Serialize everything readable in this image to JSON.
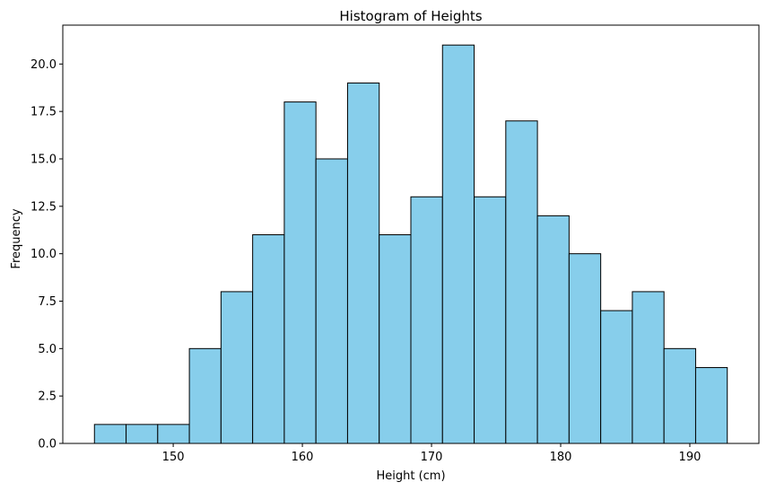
{
  "chart_data": {
    "type": "bar",
    "title": "Histogram of Heights",
    "xlabel": "Height (cm)",
    "ylabel": "Frequency",
    "bin_edges": [
      143.9,
      146.35,
      148.8,
      151.25,
      153.7,
      156.15,
      158.6,
      161.05,
      163.5,
      165.95,
      168.4,
      170.85,
      173.3,
      175.75,
      178.2,
      180.65,
      183.1,
      185.55,
      188.0,
      190.45,
      192.9
    ],
    "values": [
      1,
      1,
      1,
      5,
      8,
      11,
      18,
      15,
      19,
      11,
      13,
      21,
      13,
      17,
      12,
      10,
      7,
      8,
      5,
      4
    ],
    "xlim": [
      141.45,
      195.35
    ],
    "ylim": [
      0,
      22.05
    ],
    "xticks": [
      150,
      160,
      170,
      180,
      190
    ],
    "xtick_labels": [
      "150",
      "160",
      "170",
      "180",
      "190"
    ],
    "yticks": [
      0,
      2.5,
      5,
      7.5,
      10,
      12.5,
      15,
      17.5,
      20
    ],
    "ytick_labels": [
      "0.0",
      "2.5",
      "5.0",
      "7.5",
      "10.0",
      "12.5",
      "15.0",
      "17.5",
      "20.0"
    ],
    "bar_color": "#87ceeb",
    "edge_color": "#000000",
    "grid": false
  }
}
